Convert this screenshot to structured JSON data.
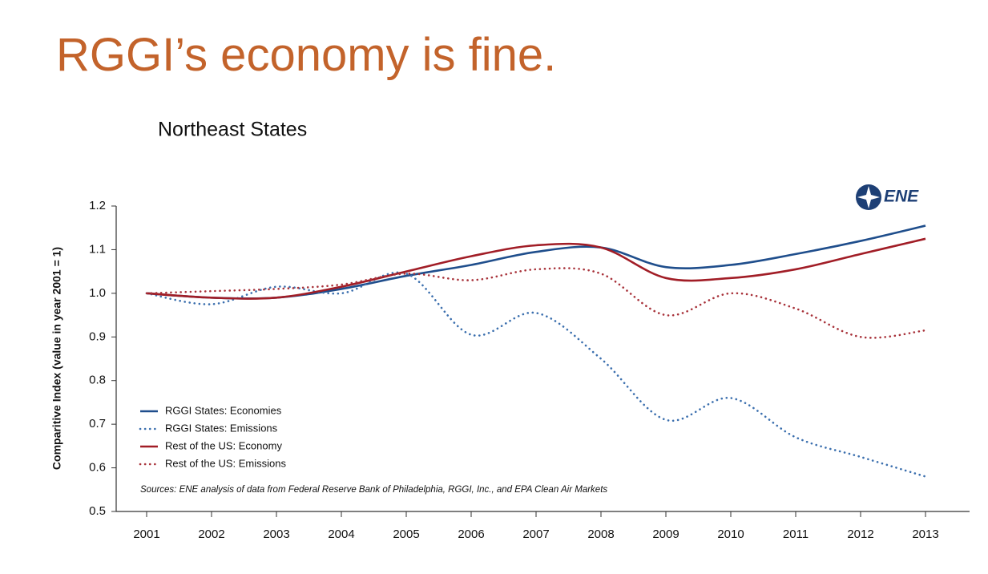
{
  "chart_data": {
    "type": "line",
    "title": "RGGI’s economy is fine.",
    "subtitle": "Northeast States",
    "ylabel": "Comparitive Index (value in year 2001 = 1)",
    "source": "Sources: ENE analysis of data from Federal Reserve Bank of Philadelphia, RGGI, Inc., and EPA Clean Air Markets",
    "logo": "ENE",
    "categories": [
      "2001",
      "2002",
      "2003",
      "2004",
      "2005",
      "2006",
      "2007",
      "2008",
      "2009",
      "2010",
      "2011",
      "2012",
      "2013"
    ],
    "ylim": [
      0.5,
      1.2
    ],
    "yticks": [
      0.5,
      0.6,
      0.7,
      0.8,
      0.9,
      {
        "value": 1,
        "label": "1.0"
      },
      1.1,
      1.2
    ],
    "legend": "lower left",
    "series": [
      {
        "name": "RGGI States: Economies",
        "color": "#1f4e8c",
        "style": "solid",
        "values": [
          1.0,
          0.99,
          0.99,
          1.01,
          1.04,
          1.065,
          1.095,
          1.105,
          1.06,
          1.065,
          1.09,
          1.12,
          1.155
        ]
      },
      {
        "name": "RGGI States: Emissions",
        "color": "#3b6fae",
        "style": "dotted",
        "values": [
          1.0,
          0.975,
          1.015,
          1.0,
          1.045,
          0.905,
          0.955,
          0.85,
          0.71,
          0.76,
          0.67,
          0.625,
          0.58
        ]
      },
      {
        "name": "Rest of the US: Economy",
        "color": "#a11d26",
        "style": "solid",
        "values": [
          1.0,
          0.99,
          0.99,
          1.015,
          1.05,
          1.085,
          1.11,
          1.105,
          1.035,
          1.035,
          1.055,
          1.09,
          1.125
        ]
      },
      {
        "name": "Rest of the US: Emissions",
        "color": "#a8323a",
        "style": "dotted",
        "values": [
          1.0,
          1.005,
          1.01,
          1.02,
          1.045,
          1.03,
          1.055,
          1.045,
          0.95,
          1.0,
          0.965,
          0.9,
          0.915
        ]
      }
    ]
  }
}
